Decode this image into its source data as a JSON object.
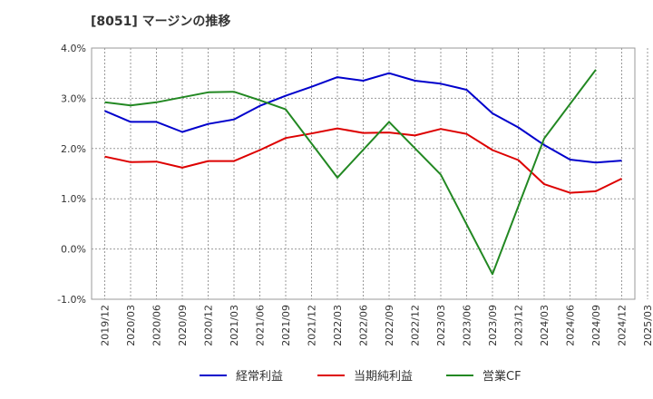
{
  "chart_data": {
    "type": "line",
    "title": "[8051]  マージンの推移",
    "y_axis": {
      "ylim": [
        -1.0,
        4.0
      ],
      "ticks": [
        -1.0,
        0.0,
        1.0,
        2.0,
        3.0,
        4.0
      ],
      "tick_labels": [
        "-1.0%",
        "0.0%",
        "1.0%",
        "2.0%",
        "3.0%",
        "4.0%"
      ]
    },
    "x_axis": {
      "tick_labels": [
        "2019/12",
        "2020/03",
        "2020/06",
        "2020/09",
        "2020/12",
        "2021/03",
        "2021/06",
        "2021/09",
        "2021/12",
        "2022/03",
        "2022/06",
        "2022/09",
        "2022/12",
        "2023/03",
        "2023/06",
        "2023/09",
        "2023/12",
        "2024/03",
        "2024/06",
        "2024/09",
        "2024/12",
        "2025/03"
      ]
    },
    "grid": true,
    "legend_position": "bottom",
    "series": [
      {
        "name": "経常利益",
        "color": "#0000cc",
        "values": [
          2.75,
          2.53,
          2.53,
          2.33,
          2.49,
          2.58,
          2.85,
          3.05,
          3.23,
          3.42,
          3.35,
          3.5,
          3.35,
          3.29,
          3.17,
          2.7,
          2.42,
          2.07,
          1.78,
          1.72,
          1.76,
          null
        ]
      },
      {
        "name": "当期純利益",
        "color": "#dd0000",
        "values": [
          1.84,
          1.73,
          1.74,
          1.62,
          1.75,
          1.75,
          1.97,
          2.21,
          2.3,
          2.4,
          2.31,
          2.32,
          2.26,
          2.39,
          2.29,
          1.97,
          1.77,
          1.29,
          1.12,
          1.15,
          1.4,
          null
        ]
      },
      {
        "name": "営業CF",
        "color": "#228822",
        "values": [
          2.92,
          2.86,
          2.92,
          3.02,
          3.12,
          3.13,
          2.96,
          2.78,
          null,
          1.42,
          null,
          2.53,
          null,
          1.48,
          null,
          -0.5,
          null,
          2.2,
          null,
          3.57,
          null,
          null
        ]
      }
    ]
  }
}
